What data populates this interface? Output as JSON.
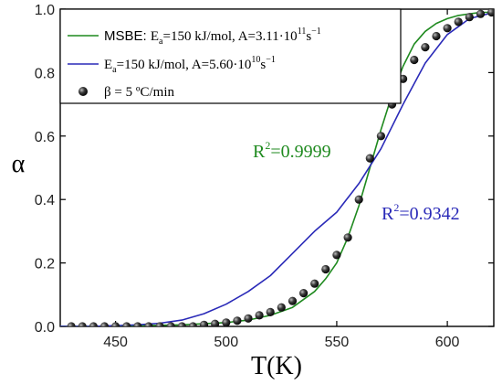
{
  "chart_data": {
    "type": "line",
    "xlabel": "T(K)",
    "ylabel": "α",
    "xlim": [
      425,
      621
    ],
    "ylim": [
      0,
      1.0
    ],
    "x_ticks": [
      450,
      500,
      550,
      600
    ],
    "y_ticks": [
      0.0,
      0.2,
      0.4,
      0.6,
      0.8,
      1.0
    ],
    "x_tick_labels": [
      "450",
      "500",
      "550",
      "600"
    ],
    "y_tick_labels": [
      "0.0",
      "0.2",
      "0.4",
      "0.6",
      "0.8",
      "1.0"
    ],
    "grid": false,
    "legend_position": "top-right",
    "series": [
      {
        "name": "MSBE: Ea=150 kJ/mol, A=3.11·10^11 s−1",
        "kind": "line",
        "color": "#1f8a1f",
        "x": [
          425,
          440,
          460,
          480,
          500,
          510,
          520,
          530,
          540,
          545,
          550,
          555,
          560,
          565,
          570,
          575,
          580,
          585,
          590,
          595,
          600,
          605,
          610,
          615,
          621
        ],
        "y": [
          0.0,
          0.0,
          0.002,
          0.005,
          0.012,
          0.02,
          0.035,
          0.06,
          0.11,
          0.15,
          0.2,
          0.28,
          0.38,
          0.5,
          0.62,
          0.73,
          0.82,
          0.89,
          0.93,
          0.955,
          0.97,
          0.98,
          0.985,
          0.99,
          0.99
        ]
      },
      {
        "name": "Ea=150 kJ/mol, A=5.60·10^10 s−1",
        "kind": "line",
        "color": "#2a2ab8",
        "x": [
          425,
          440,
          460,
          470,
          480,
          490,
          500,
          510,
          520,
          530,
          540,
          550,
          560,
          570,
          580,
          590,
          600,
          610,
          621
        ],
        "y": [
          0.0,
          0.0,
          0.005,
          0.01,
          0.02,
          0.04,
          0.07,
          0.11,
          0.16,
          0.23,
          0.3,
          0.36,
          0.45,
          0.56,
          0.7,
          0.83,
          0.92,
          0.97,
          0.99
        ]
      },
      {
        "name": "β = 5 ºC/min",
        "kind": "scatter",
        "color": "#111111",
        "x": [
          430,
          435,
          440,
          445,
          450,
          455,
          460,
          465,
          470,
          475,
          480,
          485,
          490,
          495,
          500,
          505,
          510,
          515,
          520,
          525,
          530,
          535,
          540,
          545,
          550,
          555,
          560,
          565,
          570,
          575,
          580,
          585,
          590,
          595,
          600,
          605,
          610,
          615,
          620
        ],
        "y": [
          0.0,
          0.0,
          0.0,
          0.0,
          0.0,
          0.0,
          0.0,
          0.0,
          0.0,
          0.0,
          0.0,
          0.0,
          0.005,
          0.008,
          0.012,
          0.018,
          0.025,
          0.035,
          0.045,
          0.06,
          0.08,
          0.105,
          0.135,
          0.18,
          0.225,
          0.28,
          0.4,
          0.53,
          0.6,
          0.7,
          0.78,
          0.84,
          0.88,
          0.915,
          0.94,
          0.96,
          0.975,
          0.985,
          0.99
        ]
      }
    ],
    "legend": {
      "entry1": {
        "lead": "MSBE: ",
        "base": "E",
        "sub": "a",
        "mid": "=150 kJ/mol, A=3.11·10",
        "exp": "11",
        "unit": "s",
        "unit_exp": "−1"
      },
      "entry2": {
        "base": "E",
        "sub": "a",
        "mid": "=150 kJ/mol, A=5.60·10",
        "exp": "10",
        "unit": "s",
        "unit_exp": "−1"
      },
      "entry3": {
        "text": "β = 5 ºC/min"
      }
    },
    "annotations": [
      {
        "base": "R",
        "sup": "2",
        "rest": "=0.9999",
        "color": "#1f8a1f"
      },
      {
        "base": "R",
        "sup": "2",
        "rest": "=0.9342",
        "color": "#2a2ab8"
      }
    ]
  }
}
